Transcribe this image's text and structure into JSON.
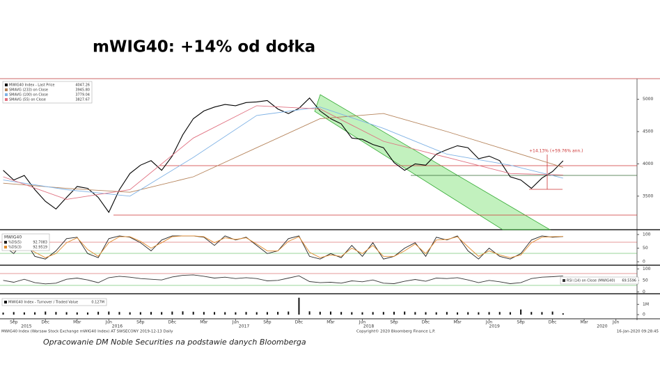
{
  "title": "mWIG40: +14% od dołka",
  "source": "Opracowanie DM Noble Securities na podstawie danych Bloomberga",
  "footer": {
    "left": "MWIG40 Index (Warsaw Stock Exchange mWIG40 Index) AT SWSECONY 2019-12-13 Daily",
    "center": "Copyright© 2020 Bloomberg Finance L.P.",
    "right": "16-Jan-2020 09:28:45"
  },
  "chart_data": [
    {
      "type": "line",
      "x": [
        0,
        1,
        2,
        3,
        4,
        5,
        6,
        7,
        8,
        9,
        10,
        11,
        12,
        13,
        14,
        15,
        16,
        17,
        18,
        19,
        20,
        21,
        22,
        23,
        24,
        25,
        26,
        27,
        28,
        29,
        30,
        31,
        32,
        33,
        34,
        35,
        36,
        37,
        38,
        39,
        40,
        41,
        42,
        43,
        44,
        45,
        46,
        47,
        48,
        49,
        50,
        51,
        52,
        53
      ],
      "xlim": [
        -0.3,
        60
      ],
      "xticks": [
        {
          "value": 1,
          "label": "Sep"
        },
        {
          "value": 4,
          "label": "Dec"
        },
        {
          "value": 7,
          "label": "Mar"
        },
        {
          "value": 10,
          "label": "Jun"
        },
        {
          "value": 13,
          "label": "Sep"
        },
        {
          "value": 16,
          "label": "Dec"
        },
        {
          "value": 19,
          "label": "Mar"
        },
        {
          "value": 22,
          "label": "Jun"
        },
        {
          "value": 25,
          "label": "Sep"
        },
        {
          "value": 28,
          "label": "Dec"
        },
        {
          "value": 31,
          "label": "Mar"
        },
        {
          "value": 34,
          "label": "Jun"
        },
        {
          "value": 37,
          "label": "Sep"
        },
        {
          "value": 40,
          "label": "Dec"
        },
        {
          "value": 43,
          "label": "Mar"
        },
        {
          "value": 46,
          "label": "Jun"
        },
        {
          "value": 49,
          "label": "Sep"
        },
        {
          "value": 52,
          "label": "Dec"
        },
        {
          "value": 55,
          "label": "Mar"
        },
        {
          "value": 58,
          "label": "Jun"
        }
      ],
      "year_ticks": [
        {
          "value": 2.2,
          "label": "2015"
        },
        {
          "value": 10.8,
          "label": "2016"
        },
        {
          "value": 22.8,
          "label": "2017"
        },
        {
          "value": 34.6,
          "label": "2018"
        },
        {
          "value": 46.5,
          "label": "2019"
        },
        {
          "value": 56.7,
          "label": "2020"
        }
      ],
      "ylim": [
        2980,
        5320
      ],
      "yticks": [
        3500,
        4000,
        4500,
        5000
      ],
      "annotation": "+14.13% (+59.76% ann.)",
      "series": [
        {
          "name": "MWIG40 Index - Last Price",
          "color": "#000000",
          "legend_value": 4047.26,
          "values": [
            3900,
            3750,
            3820,
            3600,
            3420,
            3300,
            3480,
            3650,
            3620,
            3480,
            3250,
            3600,
            3850,
            3980,
            4050,
            3900,
            4120,
            4450,
            4700,
            4820,
            4880,
            4920,
            4900,
            4950,
            4960,
            4980,
            4850,
            4780,
            4860,
            5020,
            4820,
            4700,
            4620,
            4400,
            4380,
            4300,
            4250,
            4020,
            3900,
            4000,
            3980,
            4150,
            4220,
            4280,
            4250,
            4080,
            4120,
            4050,
            3800,
            3750,
            3620,
            3780,
            3880,
            4047.26
          ]
        },
        {
          "name": "SMAVG (233) on Close",
          "color": "#b5835a",
          "legend_value": {
            "value": 3945.8,
            "label": "3945.80"
          },
          "x": [
            0,
            6,
            12,
            18,
            24,
            30,
            36,
            42,
            48,
            53
          ],
          "values": [
            3700,
            3620,
            3560,
            3800,
            4250,
            4700,
            4780,
            4500,
            4200,
            3945.8
          ]
        },
        {
          "name": "SMAVG (100) on Close",
          "color": "#7fb2e5",
          "legend_value": 3779.04,
          "x": [
            0,
            6,
            12,
            18,
            24,
            30,
            36,
            42,
            48,
            53
          ],
          "values": [
            3750,
            3600,
            3500,
            4100,
            4750,
            4880,
            4550,
            4150,
            3980,
            3779.04
          ]
        },
        {
          "name": "SMAVG (55) on Close",
          "color": "#e07080",
          "legend_value": 3827.67,
          "x": [
            0,
            6,
            12,
            18,
            24,
            30,
            36,
            42,
            48,
            53
          ],
          "values": [
            3800,
            3450,
            3600,
            4400,
            4900,
            4850,
            4350,
            4100,
            3850,
            3827.67
          ]
        }
      ]
    },
    {
      "type": "line",
      "title": "MWIG40",
      "x": [
        0,
        1,
        2,
        3,
        4,
        5,
        6,
        7,
        8,
        9,
        10,
        11,
        12,
        13,
        14,
        15,
        16,
        17,
        18,
        19,
        20,
        21,
        22,
        23,
        24,
        25,
        26,
        27,
        28,
        29,
        30,
        31,
        32,
        33,
        34,
        35,
        36,
        37,
        38,
        39,
        40,
        41,
        42,
        43,
        44,
        45,
        46,
        47,
        48,
        49,
        50,
        51,
        52,
        53
      ],
      "ylim": [
        -10,
        110
      ],
      "yticks": [
        0,
        50,
        100
      ],
      "series": [
        {
          "name": "%DS(5)",
          "color": "#222222",
          "legend_value": 92.7083,
          "values": [
            60,
            30,
            80,
            20,
            10,
            40,
            85,
            90,
            30,
            15,
            85,
            95,
            90,
            70,
            40,
            80,
            95,
            95,
            95,
            90,
            60,
            95,
            80,
            90,
            60,
            30,
            40,
            85,
            95,
            20,
            10,
            30,
            15,
            60,
            20,
            70,
            10,
            20,
            50,
            70,
            20,
            90,
            80,
            95,
            40,
            10,
            50,
            20,
            10,
            30,
            80,
            95,
            90,
            92.7083
          ]
        },
        {
          "name": "%DS(3)",
          "color": "#e08a2c",
          "legend_value": 92.9519,
          "values": [
            55,
            40,
            60,
            35,
            15,
            30,
            70,
            88,
            45,
            20,
            70,
            92,
            92,
            75,
            50,
            70,
            92,
            95,
            95,
            92,
            70,
            88,
            82,
            88,
            65,
            40,
            40,
            75,
            92,
            35,
            15,
            25,
            20,
            50,
            30,
            60,
            20,
            20,
            40,
            65,
            30,
            80,
            82,
            92,
            55,
            20,
            40,
            25,
            15,
            25,
            70,
            90,
            92,
            92.9519
          ]
        }
      ]
    },
    {
      "type": "line",
      "x": [
        0,
        1,
        2,
        3,
        4,
        5,
        6,
        7,
        8,
        9,
        10,
        11,
        12,
        13,
        14,
        15,
        16,
        17,
        18,
        19,
        20,
        21,
        22,
        23,
        24,
        25,
        26,
        27,
        28,
        29,
        30,
        31,
        32,
        33,
        34,
        35,
        36,
        37,
        38,
        39,
        40,
        41,
        42,
        43,
        44,
        45,
        46,
        47,
        48,
        49,
        50,
        51,
        52,
        53
      ],
      "ylim": [
        -5,
        110
      ],
      "yticks": [
        0,
        50,
        100
      ],
      "series": [
        {
          "name": "RSI (14) on Close (MWIG40)",
          "color": "#333333",
          "legend_value": 69.5596,
          "values": [
            50,
            42,
            55,
            40,
            35,
            38,
            55,
            60,
            52,
            40,
            62,
            68,
            64,
            58,
            55,
            52,
            65,
            72,
            74,
            68,
            60,
            64,
            58,
            62,
            58,
            48,
            50,
            60,
            70,
            45,
            40,
            42,
            38,
            48,
            44,
            52,
            38,
            36,
            46,
            54,
            46,
            60,
            58,
            62,
            52,
            40,
            50,
            44,
            36,
            40,
            58,
            64,
            66,
            69.5596
          ]
        }
      ]
    },
    {
      "type": "bar",
      "x": [
        0,
        1,
        2,
        3,
        4,
        5,
        6,
        7,
        8,
        9,
        10,
        11,
        12,
        13,
        14,
        15,
        16,
        17,
        18,
        19,
        20,
        21,
        22,
        23,
        24,
        25,
        26,
        27,
        28,
        29,
        30,
        31,
        32,
        33,
        34,
        35,
        36,
        37,
        38,
        39,
        40,
        41,
        42,
        43,
        44,
        45,
        46,
        47,
        48,
        49,
        50,
        51,
        52,
        53
      ],
      "ylim": [
        0,
        1700000
      ],
      "yticks": [
        0,
        {
          "value": 1000000,
          "label": "1M"
        }
      ],
      "series": [
        {
          "name": "MWIG40 Index - Turnover / Traded Value",
          "color": "#111111",
          "legend_value": {
            "value": 127000,
            "label": "0.127M"
          },
          "values": [
            200000,
            250000,
            220000,
            230000,
            300000,
            260000,
            240000,
            220000,
            210000,
            280000,
            300000,
            260000,
            230000,
            240000,
            260000,
            250000,
            300000,
            320000,
            280000,
            260000,
            250000,
            240000,
            230000,
            260000,
            240000,
            250000,
            270000,
            300000,
            1650000,
            320000,
            280000,
            300000,
            260000,
            240000,
            230000,
            250000,
            260000,
            280000,
            300000,
            250000,
            240000,
            230000,
            260000,
            220000,
            240000,
            230000,
            250000,
            260000,
            240000,
            500000,
            260000,
            250000,
            300000,
            127000
          ]
        }
      ]
    }
  ]
}
